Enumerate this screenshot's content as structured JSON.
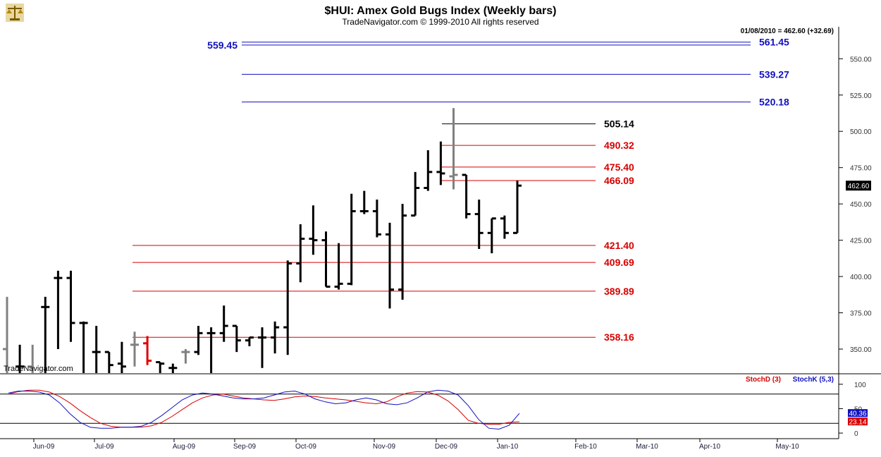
{
  "header": {
    "title": "$HUI:  Amex Gold Bugs Index  (Weekly bars)",
    "subtitle": "TradeNavigator.com © 1999-2010 All rights reserved",
    "quote": "01/08/2010 = 462.60 (+32.69)",
    "watermark": "TradeNavigator.com"
  },
  "chart_data": [
    {
      "type": "bar",
      "subtype": "ohlc",
      "title": "$HUI:  Amex Gold Bugs Index  (Weekly bars)",
      "ylim": [
        333,
        572
      ],
      "yticks": [
        350,
        375,
        400,
        425,
        450,
        475,
        500,
        525,
        550
      ],
      "ytick_labels": [
        "350.00",
        "375.00",
        "400.00",
        "425.00",
        "450.00",
        "475.00",
        "500.00",
        "525.00",
        "550.00"
      ],
      "x_months": [
        "Jun-09",
        "Jul-09",
        "Aug-09",
        "Sep-09",
        "Oct-09",
        "Nov-09",
        "Dec-09",
        "Jan-10",
        "Feb-10",
        "Mar-10",
        "Apr-10",
        "May-10"
      ],
      "last_value_label": "462.60",
      "bars": [
        {
          "o": 350,
          "h": 386,
          "l": 333,
          "c": 333,
          "color": "#808080"
        },
        {
          "o": 338,
          "h": 353,
          "l": 333,
          "c": 338,
          "color": "#000000"
        },
        {
          "o": 338,
          "h": 353,
          "l": 333,
          "c": 333,
          "color": "#808080"
        },
        {
          "o": 379,
          "h": 386,
          "l": 333,
          "c": 379,
          "color": "#000000"
        },
        {
          "o": 399,
          "h": 404,
          "l": 350,
          "c": 399,
          "color": "#000000"
        },
        {
          "o": 399,
          "h": 404,
          "l": 355,
          "c": 368,
          "color": "#000000"
        },
        {
          "o": 368,
          "h": 369,
          "l": 333,
          "c": 368,
          "color": "#000000"
        },
        {
          "o": 348,
          "h": 366,
          "l": 333,
          "c": 348,
          "color": "#000000"
        },
        {
          "o": 348,
          "h": 348,
          "l": 333,
          "c": 339,
          "color": "#000000"
        },
        {
          "o": 340,
          "h": 355,
          "l": 333,
          "c": 338,
          "color": "#000000"
        },
        {
          "o": 353,
          "h": 362,
          "l": 338,
          "c": 353,
          "color": "#808080"
        },
        {
          "o": 354,
          "h": 359,
          "l": 339,
          "c": 342,
          "color": "#e00000"
        },
        {
          "o": 341,
          "h": 341,
          "l": 333,
          "c": 340,
          "color": "#000000"
        },
        {
          "o": 337,
          "h": 340,
          "l": 333,
          "c": 337,
          "color": "#000000"
        },
        {
          "o": 348,
          "h": 350,
          "l": 340,
          "c": 348,
          "color": "#808080"
        },
        {
          "o": 348,
          "h": 366,
          "l": 346,
          "c": 361,
          "color": "#000000"
        },
        {
          "o": 361,
          "h": 365,
          "l": 333,
          "c": 361,
          "color": "#000000"
        },
        {
          "o": 361,
          "h": 380,
          "l": 355,
          "c": 366,
          "color": "#000000"
        },
        {
          "o": 366,
          "h": 366,
          "l": 348,
          "c": 356,
          "color": "#000000"
        },
        {
          "o": 356,
          "h": 358,
          "l": 352,
          "c": 358,
          "color": "#000000"
        },
        {
          "o": 358,
          "h": 365,
          "l": 337,
          "c": 358,
          "color": "#000000"
        },
        {
          "o": 358,
          "h": 369,
          "l": 347,
          "c": 365,
          "color": "#000000"
        },
        {
          "o": 365,
          "h": 411,
          "l": 346,
          "c": 409,
          "color": "#000000"
        },
        {
          "o": 409,
          "h": 436,
          "l": 396,
          "c": 426,
          "color": "#000000"
        },
        {
          "o": 426,
          "h": 449,
          "l": 415,
          "c": 425,
          "color": "#000000"
        },
        {
          "o": 425,
          "h": 431,
          "l": 393,
          "c": 393,
          "color": "#000000"
        },
        {
          "o": 393,
          "h": 423,
          "l": 391,
          "c": 395,
          "color": "#000000"
        },
        {
          "o": 395,
          "h": 457,
          "l": 394,
          "c": 445,
          "color": "#000000"
        },
        {
          "o": 445,
          "h": 459,
          "l": 443,
          "c": 445,
          "color": "#000000"
        },
        {
          "o": 445,
          "h": 453,
          "l": 427,
          "c": 429,
          "color": "#000000"
        },
        {
          "o": 429,
          "h": 437,
          "l": 378,
          "c": 391,
          "color": "#000000"
        },
        {
          "o": 391,
          "h": 450,
          "l": 384,
          "c": 442,
          "color": "#000000"
        },
        {
          "o": 442,
          "h": 472,
          "l": 442,
          "c": 461,
          "color": "#000000"
        },
        {
          "o": 461,
          "h": 487,
          "l": 459,
          "c": 472,
          "color": "#000000"
        },
        {
          "o": 472,
          "h": 493,
          "l": 463,
          "c": 471,
          "color": "#000000"
        },
        {
          "o": 469,
          "h": 516,
          "l": 460,
          "c": 470,
          "color": "#808080"
        },
        {
          "o": 470,
          "h": 470,
          "l": 440,
          "c": 443,
          "color": "#000000"
        },
        {
          "o": 443,
          "h": 453,
          "l": 419,
          "c": 430,
          "color": "#000000"
        },
        {
          "o": 430,
          "h": 440,
          "l": 416,
          "c": 440,
          "color": "#000000"
        },
        {
          "o": 440,
          "h": 442,
          "l": 426,
          "c": 430,
          "color": "#000000"
        },
        {
          "o": 430,
          "h": 466,
          "l": 430,
          "c": 462.6,
          "color": "#000000"
        }
      ]
    },
    {
      "type": "line",
      "title": "",
      "ylim": [
        -10,
        120
      ],
      "yticks": [
        0,
        50,
        100
      ],
      "ytick_labels": [
        "0",
        "50",
        "100"
      ],
      "series": [
        {
          "name": "StochD (3)",
          "color": "#d80000",
          "value_label": "23.14",
          "values": [
            80,
            85,
            88,
            88,
            84,
            75,
            62,
            46,
            32,
            20,
            14,
            12,
            12,
            12,
            15,
            22,
            34,
            48,
            62,
            72,
            78,
            80,
            76,
            72,
            70,
            68,
            67,
            70,
            74,
            76,
            75,
            72,
            70,
            68,
            65,
            62,
            60,
            64,
            74,
            82,
            85,
            84,
            78,
            66,
            48,
            26,
            20,
            18,
            18,
            22,
            23.14
          ]
        },
        {
          "name": "StochK (5,3)",
          "color": "#1010c0",
          "value_label": "40.36",
          "values": [
            82,
            86,
            86,
            84,
            78,
            62,
            40,
            22,
            12,
            10,
            10,
            12,
            12,
            14,
            22,
            36,
            52,
            68,
            78,
            82,
            80,
            76,
            72,
            70,
            70,
            72,
            78,
            84,
            86,
            80,
            70,
            64,
            60,
            62,
            68,
            72,
            68,
            60,
            58,
            62,
            72,
            84,
            88,
            86,
            78,
            56,
            28,
            10,
            8,
            16,
            40.36
          ]
        }
      ]
    }
  ],
  "levels": [
    {
      "value": "561.45",
      "color": "#1010c0",
      "start": "559.45"
    },
    {
      "value": "539.27",
      "color": "#1010c0"
    },
    {
      "value": "520.18",
      "color": "#1010c0"
    },
    {
      "value": "505.14",
      "color": "#000000"
    },
    {
      "value": "490.32",
      "color": "#d80000"
    },
    {
      "value": "475.40",
      "color": "#d80000"
    },
    {
      "value": "466.09",
      "color": "#d80000"
    },
    {
      "value": "421.40",
      "color": "#d80000"
    },
    {
      "value": "409.69",
      "color": "#d80000"
    },
    {
      "value": "389.89",
      "color": "#d80000"
    },
    {
      "value": "358.16",
      "color": "#d80000"
    }
  ],
  "colors": {
    "axis_text": "#333333",
    "grid": "#000000",
    "blue": "#1010c0",
    "red": "#d80000"
  },
  "icons": [
    "scale-logo-icon"
  ]
}
